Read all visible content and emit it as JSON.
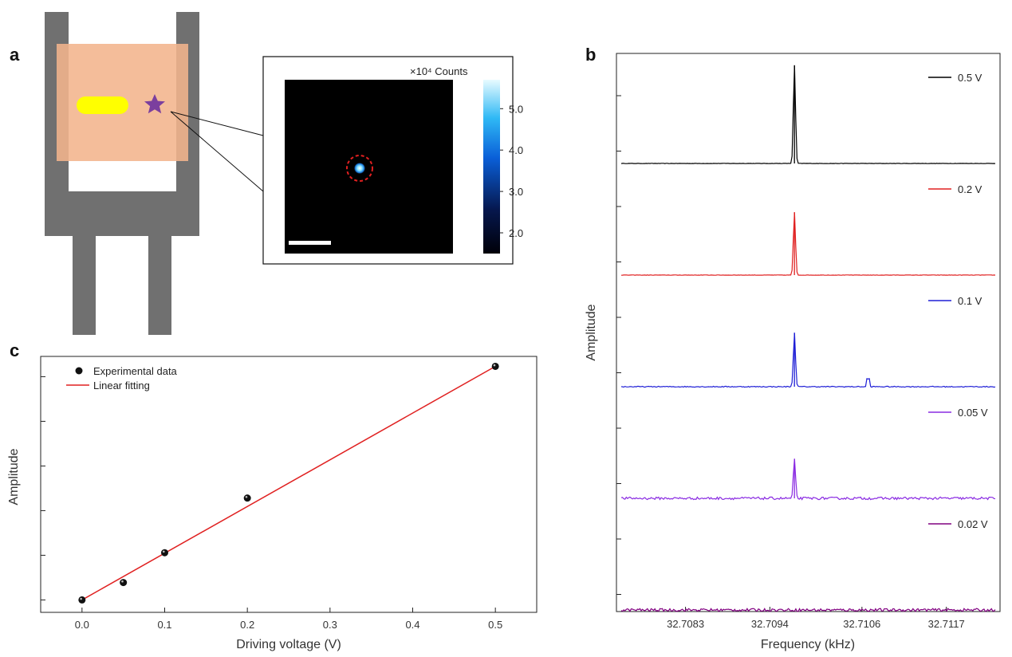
{
  "panels": {
    "a": {
      "letter": "a",
      "colorbar": {
        "title": "×10⁴ Counts",
        "ticks": [
          "2.0",
          "3.0",
          "4.0",
          "5.0"
        ],
        "tick_values": [
          2.0,
          3.0,
          4.0,
          5.0
        ],
        "range": [
          1.5,
          5.7
        ]
      },
      "colors": {
        "frame": "#707070",
        "substrate": "#F2B48C",
        "bar": "#FFFF00",
        "star": "#7B3F9E",
        "marker_circle": "#E02020"
      }
    },
    "b": {
      "letter": "b"
    },
    "c": {
      "letter": "c"
    }
  },
  "chart_data": [
    {
      "panel": "b",
      "type": "line",
      "xlabel": "Frequency (kHz)",
      "ylabel": "Amplitude",
      "xlim": [
        32.7074,
        32.7124
      ],
      "xticks": [
        "32.7083",
        "32.7094",
        "32.7106",
        "32.7117"
      ],
      "xtick_values": [
        32.7083,
        32.7094,
        32.7106,
        32.7117
      ],
      "peak_frequency": 32.70972,
      "series": [
        {
          "name": "0.5 V",
          "color": "#000000",
          "peak": 1.0,
          "noise": 0.02
        },
        {
          "name": "0.2 V",
          "color": "#E02020",
          "peak": 0.64,
          "noise": 0.025
        },
        {
          "name": "0.1 V",
          "color": "#1F1FD6",
          "peak": 0.55,
          "noise": 0.06
        },
        {
          "name": "0.05 V",
          "color": "#8A2BE2",
          "peak": 0.4,
          "noise": 0.16
        },
        {
          "name": "0.02 V",
          "color": "#800080",
          "peak": 0.0,
          "noise": 0.18
        }
      ]
    },
    {
      "panel": "c",
      "type": "scatter",
      "xlabel": "Driving voltage (V)",
      "ylabel": "Amplitude",
      "xlim": [
        -0.05,
        0.55
      ],
      "ylim": [
        -0.05,
        0.98
      ],
      "xticks": [
        "0.0",
        "0.1",
        "0.2",
        "0.3",
        "0.4",
        "0.5"
      ],
      "xtick_values": [
        0.0,
        0.1,
        0.2,
        0.3,
        0.4,
        0.5
      ],
      "points_x": [
        0.0,
        0.05,
        0.1,
        0.2,
        0.5
      ],
      "points_y": [
        0.0,
        0.07,
        0.19,
        0.41,
        0.94
      ],
      "fit": {
        "slope": 1.88,
        "intercept": 0.0
      },
      "legend": [
        {
          "label": "Experimental data",
          "kind": "marker"
        },
        {
          "label": "Linear fitting",
          "kind": "line"
        }
      ],
      "legend_position": "top-left",
      "colors": {
        "marker": "#000000",
        "fit_line": "#E02020"
      }
    }
  ]
}
